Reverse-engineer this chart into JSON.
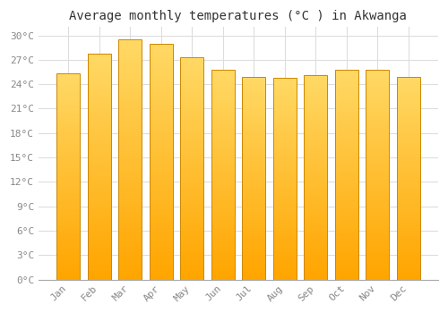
{
  "title": "Average monthly temperatures (°C ) in Akwanga",
  "months": [
    "Jan",
    "Feb",
    "Mar",
    "Apr",
    "May",
    "Jun",
    "Jul",
    "Aug",
    "Sep",
    "Oct",
    "Nov",
    "Dec"
  ],
  "values": [
    25.3,
    27.8,
    29.5,
    29.0,
    27.3,
    25.8,
    24.9,
    24.8,
    25.1,
    25.8,
    25.8,
    24.9
  ],
  "bar_color_bottom": "#FFA500",
  "bar_color_top": "#FFD966",
  "bar_edge_color": "#CC8800",
  "ylim": [
    0,
    31
  ],
  "yticks": [
    0,
    3,
    6,
    9,
    12,
    15,
    18,
    21,
    24,
    27,
    30
  ],
  "background_color": "#ffffff",
  "grid_color": "#dddddd",
  "tick_label_color": "#888888",
  "title_color": "#333333",
  "title_fontsize": 10,
  "tick_fontsize": 8,
  "bar_width": 0.75
}
